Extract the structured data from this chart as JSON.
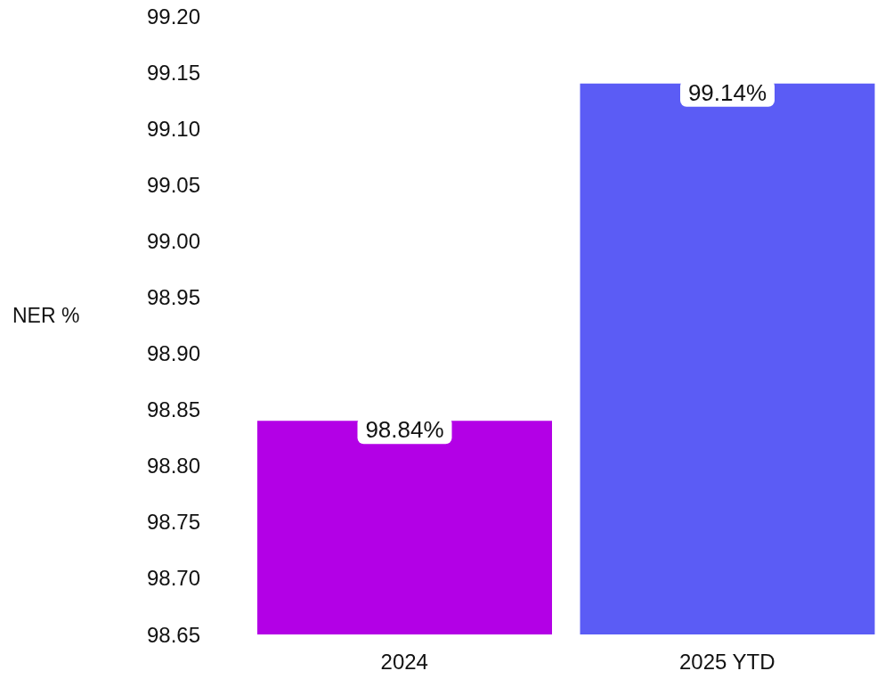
{
  "chart_data": {
    "type": "bar",
    "ylabel": "NER %",
    "categories": [
      "2024",
      "2025 YTD"
    ],
    "values": [
      98.84,
      99.14
    ],
    "colors": [
      "#b300e6",
      "#5b5cf5"
    ],
    "value_labels": [
      "98.84%",
      "99.14%"
    ],
    "ylim": [
      98.65,
      99.2
    ],
    "yticks": [
      {
        "value": 98.65,
        "label": "98.65"
      },
      {
        "value": 98.7,
        "label": "98.70"
      },
      {
        "value": 98.75,
        "label": "98.75"
      },
      {
        "value": 98.8,
        "label": "98.80"
      },
      {
        "value": 98.85,
        "label": "98.85"
      },
      {
        "value": 98.9,
        "label": "98.90"
      },
      {
        "value": 98.95,
        "label": "98.95"
      },
      {
        "value": 99.0,
        "label": "99.00"
      },
      {
        "value": 99.05,
        "label": "99.05"
      },
      {
        "value": 99.1,
        "label": "99.10"
      },
      {
        "value": 99.15,
        "label": "99.15"
      },
      {
        "value": 99.2,
        "label": "99.20"
      }
    ],
    "grid": false,
    "legend": false
  }
}
